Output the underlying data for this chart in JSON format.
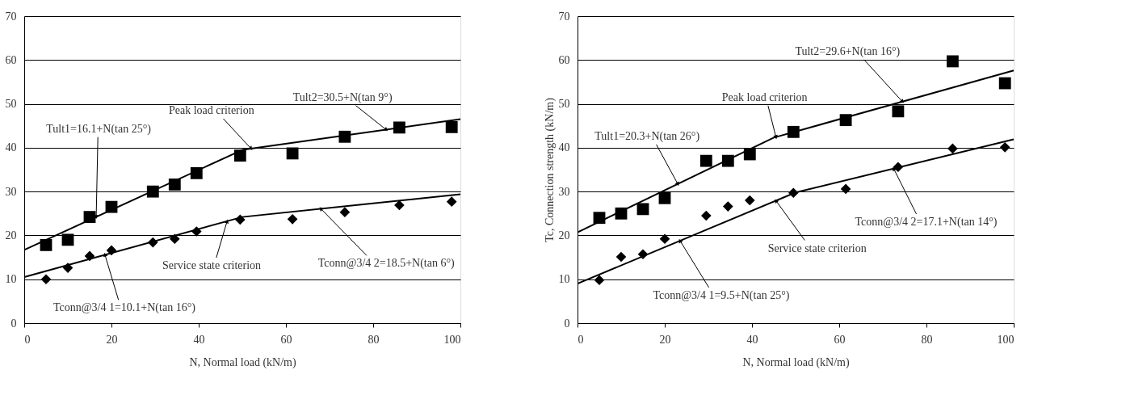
{
  "chart_data": [
    {
      "type": "scatter",
      "xlabel": "N, Normal load (kN/m)",
      "xlim": [
        0,
        100
      ],
      "xticks": [
        0,
        20,
        40,
        60,
        80,
        100
      ],
      "ylim": [
        0,
        70
      ],
      "yticks": [
        0,
        10,
        20,
        30,
        40,
        50,
        60,
        70
      ],
      "grid": "y",
      "series": [
        {
          "type": "scatter",
          "marker": "square",
          "color": "#000000",
          "x": [
            5,
            10,
            15,
            20,
            29.5,
            34.5,
            39.5,
            49.5,
            61.5,
            73.5,
            86,
            98
          ],
          "values": [
            17.8,
            19,
            24.2,
            26.5,
            30,
            31.6,
            34.2,
            38.2,
            38.7,
            42.5,
            44.6,
            44.7
          ]
        },
        {
          "type": "scatter",
          "marker": "diamond",
          "color": "#000000",
          "x": [
            5,
            10,
            15,
            20,
            29.5,
            34.5,
            39.5,
            49.5,
            61.5,
            73.5,
            86,
            98
          ],
          "values": [
            10,
            12.6,
            15.3,
            16.6,
            18.4,
            19.2,
            20.9,
            23.6,
            23.7,
            25.3,
            26.9,
            27.7
          ]
        },
        {
          "type": "line",
          "color": "#000000",
          "x": [
            0,
            50,
            100
          ],
          "values": [
            16.7,
            39.5,
            46.5
          ]
        },
        {
          "type": "line",
          "color": "#000000",
          "x": [
            0,
            50,
            100
          ],
          "values": [
            10.5,
            24.2,
            29.4
          ]
        }
      ],
      "annotations": [
        {
          "text": "Tult2=30.5+N(tan 9°)",
          "x": 83,
          "y": 44.1
        },
        {
          "text": "Peak load criterion",
          "x": 52,
          "y": 39.8
        },
        {
          "text": "Tult1=16.1+N(tan 25°)",
          "x": 16.5,
          "y": 24.2
        },
        {
          "text": "Service state criterion",
          "x": 46.5,
          "y": 23.2
        },
        {
          "text": "Tconn@3/4 2=18.5+N(tan 6°)",
          "x": 68,
          "y": 26.1
        },
        {
          "text": "Tconn@3/4 1=10.1+N(tan 16°)",
          "x": 18.5,
          "y": 15.6
        }
      ]
    },
    {
      "type": "scatter",
      "xlabel": "N, Normal load (kN/m)",
      "ylabel": "Tc, Connection strength (kN/m)",
      "xlim": [
        0,
        100
      ],
      "xticks": [
        0,
        20,
        40,
        60,
        80,
        100
      ],
      "ylim": [
        0,
        70
      ],
      "yticks": [
        0,
        10,
        20,
        30,
        40,
        50,
        60,
        70
      ],
      "grid": "y",
      "series": [
        {
          "type": "scatter",
          "marker": "square",
          "color": "#000000",
          "x": [
            5,
            10,
            15,
            20,
            29.5,
            34.5,
            39.5,
            49.5,
            61.5,
            73.5,
            86,
            98
          ],
          "values": [
            24,
            25,
            26,
            28.5,
            37,
            37,
            38.5,
            43.6,
            46.3,
            48.3,
            59.7,
            54.7
          ]
        },
        {
          "type": "scatter",
          "marker": "diamond",
          "color": "#000000",
          "x": [
            5,
            10,
            15,
            20,
            29.5,
            34.5,
            39.5,
            49.5,
            61.5,
            73.5,
            86,
            98
          ],
          "values": [
            9.8,
            15.1,
            15.7,
            19.2,
            24.5,
            26.6,
            28,
            29.7,
            30.6,
            35.6,
            39.8,
            40.1
          ]
        },
        {
          "type": "line",
          "color": "#000000",
          "x": [
            0,
            45,
            100
          ],
          "values": [
            20.7,
            42.3,
            57.6
          ]
        },
        {
          "type": "line",
          "color": "#000000",
          "x": [
            0,
            50,
            100
          ],
          "values": [
            9,
            29.8,
            41.9
          ]
        }
      ],
      "annotations": [
        {
          "text": "Tult2=29.6+N(tan 16°)",
          "x": 74.5,
          "y": 50.5
        },
        {
          "text": "Peak load criterion",
          "x": 45.5,
          "y": 42.4
        },
        {
          "text": "Tult1=20.3+N(tan 26°)",
          "x": 23,
          "y": 31.7
        },
        {
          "text": "Tconn@3/4 2=17.1+N(tan 14°)",
          "x": 72.5,
          "y": 35.2
        },
        {
          "text": "Service state criterion",
          "x": 45.5,
          "y": 27.9
        },
        {
          "text": "Tconn@3/4 1=9.5+N(tan 25°)",
          "x": 23.5,
          "y": 18.8
        }
      ]
    }
  ]
}
